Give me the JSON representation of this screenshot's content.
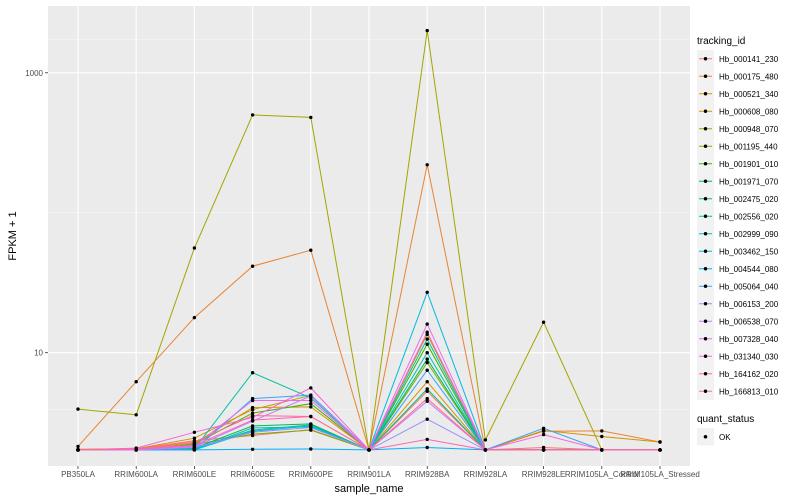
{
  "chart_data": {
    "type": "line",
    "title": "",
    "xlabel": "sample_name",
    "ylabel": "FPKM + 1",
    "y_scale": "log10",
    "ylim": [
      1.55,
      3000
    ],
    "y_ticks": [
      10,
      1000
    ],
    "grid": true,
    "legend_position": "right",
    "categories": [
      "PB350LA",
      "RRIM600LA",
      "RRIM600LE",
      "RRIM600SE",
      "RRIM600PE",
      "RRIM901LA",
      "RRIM928BA",
      "RRIM928LA",
      "RRIM928LE",
      "RRIM105LA_Control",
      "RRIM105LA_Stressed"
    ],
    "legend_title": "tracking_id",
    "series": [
      {
        "name": "Hb_000141_230",
        "color": "#F8766D",
        "values": [
          2.02,
          2.06,
          2.35,
          2.56,
          2.82,
          2.02,
          5.3,
          2.02,
          2.1,
          2.02,
          2.02
        ]
      },
      {
        "name": "Hb_000175_480",
        "color": "#EA8331",
        "values": [
          2.14,
          6.2,
          17.8,
          41.5,
          54.0,
          2.02,
          220.0,
          2.02,
          2.75,
          2.76,
          2.3
        ]
      },
      {
        "name": "Hb_000521_340",
        "color": "#D89000",
        "values": [
          2.04,
          2.06,
          2.25,
          4.05,
          4.1,
          2.02,
          6.2,
          2.02,
          2.78,
          2.52,
          2.3
        ]
      },
      {
        "name": "Hb_000608_080",
        "color": "#C09B00",
        "values": [
          2.02,
          2.06,
          2.45,
          3.92,
          4.95,
          2.02,
          13.5,
          2.02,
          2.02,
          2.02,
          2.02
        ]
      },
      {
        "name": "Hb_000948_070",
        "color": "#A3A500",
        "values": [
          3.95,
          3.6,
          56.0,
          500.0,
          480.0,
          2.02,
          2000.0,
          2.38,
          16.5,
          2.02,
          2.02
        ]
      },
      {
        "name": "Hb_001195_440",
        "color": "#7CAE00",
        "values": [
          2.02,
          2.02,
          2.2,
          2.62,
          2.8,
          2.02,
          8.5,
          2.02,
          2.02,
          2.02,
          2.02
        ]
      },
      {
        "name": "Hb_001901_010",
        "color": "#39B600",
        "values": [
          2.02,
          2.02,
          2.22,
          3.7,
          4.32,
          2.02,
          11.5,
          2.02,
          2.02,
          2.02,
          2.02
        ]
      },
      {
        "name": "Hb_001971_070",
        "color": "#00BB4E",
        "values": [
          2.02,
          2.02,
          2.08,
          3.0,
          3.1,
          2.02,
          9.0,
          2.02,
          2.02,
          2.02,
          2.02
        ]
      },
      {
        "name": "Hb_002475_020",
        "color": "#00BF7D",
        "values": [
          2.02,
          2.02,
          2.06,
          2.8,
          3.05,
          2.02,
          5.5,
          2.02,
          2.02,
          2.02,
          2.02
        ]
      },
      {
        "name": "Hb_002556_020",
        "color": "#00C1A3",
        "values": [
          2.02,
          2.02,
          2.05,
          7.2,
          4.75,
          2.02,
          12.5,
          2.02,
          2.02,
          2.02,
          2.02
        ]
      },
      {
        "name": "Hb_002999_090",
        "color": "#00BFC4",
        "values": [
          2.02,
          2.02,
          2.03,
          2.9,
          2.95,
          2.02,
          10.0,
          2.02,
          2.02,
          2.02,
          2.02
        ]
      },
      {
        "name": "Hb_003462_150",
        "color": "#00BAE0",
        "values": [
          2.02,
          2.02,
          2.02,
          2.75,
          3.0,
          2.02,
          27.0,
          2.02,
          2.02,
          2.02,
          2.02
        ]
      },
      {
        "name": "Hb_004544_080",
        "color": "#00B0F6",
        "values": [
          2.02,
          2.02,
          2.02,
          2.04,
          2.05,
          2.02,
          2.1,
          2.02,
          2.02,
          2.02,
          2.02
        ]
      },
      {
        "name": "Hb_005064_040",
        "color": "#35A2FF",
        "values": [
          2.02,
          2.02,
          2.02,
          4.7,
          4.98,
          2.02,
          7.5,
          2.02,
          2.88,
          2.02,
          2.02
        ]
      },
      {
        "name": "Hb_006153_200",
        "color": "#9590FF",
        "values": [
          2.02,
          2.02,
          2.1,
          2.7,
          2.92,
          2.02,
          3.35,
          2.02,
          2.02,
          2.02,
          2.02
        ]
      },
      {
        "name": "Hb_006538_070",
        "color": "#C77CFF",
        "values": [
          2.02,
          2.02,
          2.12,
          3.25,
          4.9,
          2.02,
          4.5,
          2.02,
          2.02,
          2.02,
          2.02
        ]
      },
      {
        "name": "Hb_007328_040",
        "color": "#E76BF3",
        "values": [
          2.02,
          2.02,
          2.15,
          4.55,
          4.55,
          2.02,
          16.0,
          2.02,
          2.02,
          2.02,
          2.02
        ]
      },
      {
        "name": "Hb_031340_030",
        "color": "#FA62DB",
        "values": [
          2.02,
          2.08,
          2.7,
          3.45,
          5.6,
          2.02,
          14.0,
          2.02,
          2.6,
          2.02,
          2.02
        ]
      },
      {
        "name": "Hb_164162_020",
        "color": "#FF62BC",
        "values": [
          2.02,
          2.06,
          2.18,
          3.3,
          3.5,
          2.02,
          2.4,
          2.02,
          2.02,
          2.02,
          2.02
        ]
      },
      {
        "name": "Hb_166813_010",
        "color": "#FF6C91",
        "values": [
          2.02,
          2.05,
          2.3,
          3.55,
          3.5,
          2.02,
          4.7,
          2.02,
          2.02,
          2.02,
          2.02
        ]
      }
    ],
    "point_legend": {
      "title": "quant_status",
      "label": "OK"
    }
  }
}
